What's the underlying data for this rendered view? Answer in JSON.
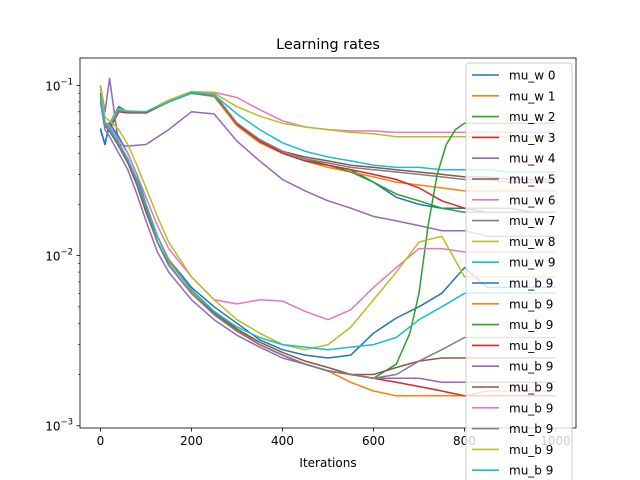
{
  "chart_data": {
    "type": "line",
    "title": "Learning rates",
    "xlabel": "Iterations",
    "ylabel": "",
    "xlim": [
      -45,
      1045
    ],
    "ylim": [
      0.00097,
      0.145
    ],
    "yscale": "log",
    "grid": false,
    "legend_position": "top-right",
    "x_ticks": [
      0,
      200,
      400,
      600,
      800,
      1000
    ],
    "x_tick_labels": [
      "0",
      "200",
      "400",
      "600",
      "800",
      "1000"
    ],
    "y_ticks": [
      0.001,
      0.01,
      0.1
    ],
    "y_tick_labels": [
      "10",
      "10",
      "10"
    ],
    "y_tick_exponents": [
      "−3",
      "−2",
      "−1"
    ],
    "series": [
      {
        "name": "mu_w 0",
        "color": "#1f77b4",
        "x": [
          0,
          10,
          20,
          40,
          60,
          100,
          150,
          200,
          250,
          300,
          350,
          400,
          450,
          500,
          550,
          600,
          650,
          700,
          750,
          800,
          850,
          900,
          950,
          1000
        ],
        "y": [
          0.056,
          0.045,
          0.06,
          0.075,
          0.07,
          0.07,
          0.08,
          0.091,
          0.088,
          0.06,
          0.048,
          0.04,
          0.036,
          0.034,
          0.032,
          0.027,
          0.022,
          0.02,
          0.019,
          0.019,
          0.019,
          0.019,
          0.018,
          0.018
        ]
      },
      {
        "name": "mu_w 1",
        "color": "#ff7f0e",
        "x": [
          0,
          10,
          20,
          40,
          60,
          100,
          150,
          200,
          250,
          300,
          350,
          400,
          450,
          500,
          550,
          600,
          650,
          700,
          750,
          800,
          850,
          900,
          950,
          1000
        ],
        "y": [
          0.1,
          0.06,
          0.058,
          0.072,
          0.07,
          0.069,
          0.08,
          0.09,
          0.086,
          0.058,
          0.046,
          0.04,
          0.036,
          0.033,
          0.031,
          0.029,
          0.027,
          0.026,
          0.025,
          0.024,
          0.024,
          0.024,
          0.024,
          0.024
        ]
      },
      {
        "name": "mu_w 2",
        "color": "#2ca02c",
        "x": [
          0,
          10,
          20,
          40,
          60,
          100,
          150,
          200,
          250,
          300,
          350,
          400,
          450,
          500,
          550,
          600,
          650,
          700,
          750,
          800,
          850,
          900,
          950,
          1000
        ],
        "y": [
          0.1,
          0.06,
          0.06,
          0.073,
          0.07,
          0.069,
          0.08,
          0.09,
          0.087,
          0.06,
          0.047,
          0.041,
          0.037,
          0.034,
          0.031,
          0.027,
          0.023,
          0.021,
          0.019,
          0.018,
          0.018,
          0.018,
          0.018,
          0.018
        ]
      },
      {
        "name": "mu_w 3",
        "color": "#d62728",
        "x": [
          0,
          10,
          20,
          40,
          60,
          100,
          150,
          200,
          250,
          300,
          350,
          400,
          450,
          500,
          550,
          600,
          650,
          700,
          750,
          800,
          850,
          900,
          950,
          1000
        ],
        "y": [
          0.1,
          0.058,
          0.055,
          0.07,
          0.069,
          0.069,
          0.08,
          0.091,
          0.088,
          0.059,
          0.047,
          0.04,
          0.036,
          0.034,
          0.032,
          0.03,
          0.028,
          0.025,
          0.021,
          0.019,
          0.018,
          0.018,
          0.018,
          0.018
        ]
      },
      {
        "name": "mu_w 4",
        "color": "#9467bd",
        "x": [
          0,
          10,
          20,
          40,
          60,
          100,
          150,
          200,
          250,
          300,
          350,
          400,
          450,
          500,
          550,
          600,
          650,
          700,
          750,
          800,
          850,
          900,
          950,
          1000
        ],
        "y": [
          0.1,
          0.07,
          0.11,
          0.045,
          0.044,
          0.045,
          0.055,
          0.07,
          0.068,
          0.047,
          0.036,
          0.028,
          0.024,
          0.021,
          0.019,
          0.017,
          0.016,
          0.015,
          0.014,
          0.014,
          0.013,
          0.013,
          0.013,
          0.013
        ]
      },
      {
        "name": "mu_w 5",
        "color": "#8c564b",
        "x": [
          0,
          10,
          20,
          40,
          60,
          100,
          150,
          200,
          250,
          300,
          350,
          400,
          450,
          500,
          550,
          600,
          650,
          700,
          750,
          800,
          850,
          900,
          950,
          1000
        ],
        "y": [
          0.1,
          0.057,
          0.06,
          0.073,
          0.07,
          0.07,
          0.081,
          0.091,
          0.089,
          0.06,
          0.048,
          0.041,
          0.038,
          0.036,
          0.034,
          0.033,
          0.032,
          0.031,
          0.03,
          0.029,
          0.029,
          0.028,
          0.028,
          0.028
        ]
      },
      {
        "name": "mu_w 6",
        "color": "#e377c2",
        "x": [
          0,
          10,
          20,
          40,
          60,
          100,
          150,
          200,
          250,
          300,
          350,
          400,
          450,
          500,
          550,
          600,
          650,
          700,
          750,
          800,
          850,
          900,
          950,
          1000
        ],
        "y": [
          0.1,
          0.06,
          0.06,
          0.072,
          0.07,
          0.07,
          0.081,
          0.092,
          0.091,
          0.085,
          0.072,
          0.062,
          0.057,
          0.055,
          0.054,
          0.054,
          0.053,
          0.053,
          0.053,
          0.053,
          0.053,
          0.053,
          0.053,
          0.053
        ]
      },
      {
        "name": "mu_w 7",
        "color": "#7f7f7f",
        "x": [
          0,
          10,
          20,
          40,
          60,
          100,
          150,
          200,
          250,
          300,
          350,
          400,
          450,
          500,
          550,
          600,
          650,
          700,
          750,
          800,
          850,
          900,
          950,
          1000
        ],
        "y": [
          0.1,
          0.057,
          0.058,
          0.072,
          0.07,
          0.07,
          0.08,
          0.091,
          0.087,
          0.06,
          0.048,
          0.041,
          0.037,
          0.035,
          0.033,
          0.032,
          0.031,
          0.03,
          0.029,
          0.028,
          0.028,
          0.027,
          0.027,
          0.027
        ]
      },
      {
        "name": "mu_w 8",
        "color": "#bcbd22",
        "x": [
          0,
          10,
          20,
          40,
          60,
          100,
          150,
          200,
          250,
          300,
          350,
          400,
          450,
          500,
          550,
          600,
          650,
          700,
          750,
          800,
          850,
          900,
          950,
          1000
        ],
        "y": [
          0.1,
          0.06,
          0.06,
          0.073,
          0.071,
          0.07,
          0.082,
          0.092,
          0.09,
          0.075,
          0.066,
          0.06,
          0.057,
          0.055,
          0.053,
          0.052,
          0.05,
          0.05,
          0.05,
          0.05,
          0.05,
          0.05,
          0.05,
          0.05
        ]
      },
      {
        "name": "mu_w 9",
        "color": "#17becf",
        "x": [
          0,
          10,
          20,
          40,
          60,
          100,
          150,
          200,
          250,
          300,
          350,
          400,
          450,
          500,
          550,
          600,
          650,
          700,
          750,
          800,
          850,
          900,
          950,
          1000
        ],
        "y": [
          0.1,
          0.058,
          0.058,
          0.072,
          0.07,
          0.07,
          0.08,
          0.091,
          0.088,
          0.068,
          0.055,
          0.046,
          0.041,
          0.038,
          0.036,
          0.034,
          0.033,
          0.033,
          0.032,
          0.032,
          0.032,
          0.031,
          0.031,
          0.031
        ]
      },
      {
        "name": "mu_b 9",
        "color": "#1f77b4",
        "x": [
          0,
          10,
          20,
          40,
          60,
          80,
          100,
          125,
          150,
          200,
          250,
          300,
          350,
          400,
          450,
          500,
          550,
          600,
          650,
          700,
          750,
          800,
          850,
          900,
          950,
          1000
        ],
        "y": [
          0.055,
          0.045,
          0.06,
          0.05,
          0.04,
          0.03,
          0.02,
          0.013,
          0.0095,
          0.0065,
          0.005,
          0.004,
          0.0032,
          0.0028,
          0.0026,
          0.0025,
          0.0026,
          0.0035,
          0.0043,
          0.005,
          0.006,
          0.0085,
          0.0065,
          0.0065,
          0.0065,
          0.0065
        ]
      },
      {
        "name": "mu_b 9",
        "color": "#ff7f0e",
        "x": [
          0,
          10,
          20,
          40,
          60,
          80,
          100,
          125,
          150,
          200,
          250,
          300,
          350,
          400,
          450,
          500,
          550,
          600,
          650,
          700,
          750,
          800,
          850,
          900,
          950,
          1000
        ],
        "y": [
          0.09,
          0.06,
          0.055,
          0.045,
          0.037,
          0.028,
          0.02,
          0.013,
          0.0095,
          0.0062,
          0.0047,
          0.0037,
          0.003,
          0.0026,
          0.0023,
          0.0021,
          0.0018,
          0.0016,
          0.0015,
          0.0015,
          0.0015,
          0.0015,
          0.0016,
          0.0016,
          0.0016,
          0.0016
        ]
      },
      {
        "name": "mu_b 9",
        "color": "#2ca02c",
        "x": [
          0,
          10,
          20,
          40,
          60,
          80,
          100,
          125,
          150,
          200,
          250,
          300,
          350,
          400,
          450,
          500,
          550,
          600,
          650,
          680,
          700,
          720,
          740,
          760,
          780,
          800,
          850,
          900,
          950,
          1000
        ],
        "y": [
          0.09,
          0.058,
          0.055,
          0.045,
          0.036,
          0.027,
          0.019,
          0.012,
          0.0088,
          0.006,
          0.0045,
          0.0036,
          0.003,
          0.0026,
          0.0023,
          0.0021,
          0.002,
          0.0019,
          0.0023,
          0.0035,
          0.006,
          0.015,
          0.03,
          0.045,
          0.055,
          0.06,
          0.06,
          0.06,
          0.06,
          0.06
        ]
      },
      {
        "name": "mu_b 9",
        "color": "#d62728",
        "x": [
          0,
          10,
          20,
          40,
          60,
          80,
          100,
          125,
          150,
          200,
          250,
          300,
          350,
          400,
          450,
          500,
          550,
          600,
          650,
          700,
          750,
          800,
          850,
          900,
          950,
          1000
        ],
        "y": [
          0.085,
          0.058,
          0.054,
          0.044,
          0.036,
          0.027,
          0.019,
          0.012,
          0.0088,
          0.006,
          0.0045,
          0.0036,
          0.003,
          0.0026,
          0.0023,
          0.0021,
          0.002,
          0.0019,
          0.0018,
          0.0017,
          0.0016,
          0.0015,
          0.0015,
          0.0015,
          0.0015,
          0.0015
        ]
      },
      {
        "name": "mu_b 9",
        "color": "#9467bd",
        "x": [
          0,
          10,
          20,
          40,
          60,
          80,
          100,
          125,
          150,
          200,
          250,
          300,
          350,
          400,
          450,
          500,
          550,
          600,
          650,
          700,
          750,
          800,
          850,
          900,
          950,
          1000
        ],
        "y": [
          0.08,
          0.055,
          0.05,
          0.04,
          0.032,
          0.023,
          0.016,
          0.0105,
          0.008,
          0.0055,
          0.0042,
          0.0034,
          0.0029,
          0.0025,
          0.0023,
          0.0021,
          0.002,
          0.0019,
          0.0019,
          0.0019,
          0.0018,
          0.0018,
          0.0018,
          0.0018,
          0.0018,
          0.0018
        ]
      },
      {
        "name": "mu_b 9",
        "color": "#8c564b",
        "x": [
          0,
          10,
          20,
          40,
          60,
          80,
          100,
          125,
          150,
          200,
          250,
          300,
          350,
          400,
          450,
          500,
          550,
          600,
          650,
          700,
          750,
          800,
          850,
          900,
          950,
          1000
        ],
        "y": [
          0.085,
          0.058,
          0.054,
          0.044,
          0.035,
          0.026,
          0.018,
          0.012,
          0.0088,
          0.006,
          0.0046,
          0.0037,
          0.0031,
          0.0027,
          0.0024,
          0.0022,
          0.002,
          0.002,
          0.0022,
          0.0024,
          0.0025,
          0.0025,
          0.0025,
          0.0025,
          0.0025,
          0.0025
        ]
      },
      {
        "name": "mu_b 9",
        "color": "#e377c2",
        "x": [
          0,
          10,
          20,
          40,
          60,
          80,
          100,
          125,
          150,
          200,
          250,
          300,
          350,
          400,
          450,
          500,
          550,
          600,
          650,
          700,
          750,
          800,
          850,
          900,
          950,
          1000
        ],
        "y": [
          0.085,
          0.06,
          0.058,
          0.048,
          0.04,
          0.03,
          0.022,
          0.015,
          0.011,
          0.0075,
          0.0055,
          0.0052,
          0.0055,
          0.0054,
          0.0047,
          0.0042,
          0.0048,
          0.0065,
          0.0085,
          0.011,
          0.011,
          0.0105,
          0.0105,
          0.0105,
          0.0105,
          0.0105
        ]
      },
      {
        "name": "mu_b 9",
        "color": "#7f7f7f",
        "x": [
          0,
          10,
          20,
          40,
          60,
          80,
          100,
          125,
          150,
          200,
          250,
          300,
          350,
          400,
          450,
          500,
          550,
          600,
          650,
          700,
          750,
          800,
          850,
          900,
          950,
          1000
        ],
        "y": [
          0.085,
          0.058,
          0.055,
          0.045,
          0.036,
          0.027,
          0.019,
          0.012,
          0.0088,
          0.006,
          0.0045,
          0.0036,
          0.003,
          0.0026,
          0.0023,
          0.0021,
          0.002,
          0.0019,
          0.002,
          0.0024,
          0.0028,
          0.0033,
          0.0033,
          0.0033,
          0.0033,
          0.0033
        ]
      },
      {
        "name": "mu_b 9",
        "color": "#bcbd22",
        "x": [
          0,
          10,
          20,
          40,
          60,
          80,
          100,
          125,
          150,
          200,
          250,
          300,
          350,
          400,
          450,
          500,
          550,
          600,
          650,
          700,
          750,
          800,
          850,
          900,
          950,
          1000
        ],
        "y": [
          0.1,
          0.065,
          0.062,
          0.055,
          0.045,
          0.034,
          0.025,
          0.017,
          0.012,
          0.0075,
          0.0055,
          0.0042,
          0.0035,
          0.003,
          0.0028,
          0.003,
          0.0038,
          0.0055,
          0.008,
          0.012,
          0.013,
          0.0075,
          0.0075,
          0.0075,
          0.0075,
          0.0075
        ]
      },
      {
        "name": "mu_b 9",
        "color": "#17becf",
        "x": [
          0,
          10,
          20,
          40,
          60,
          80,
          100,
          125,
          150,
          200,
          250,
          300,
          350,
          400,
          450,
          500,
          550,
          600,
          650,
          700,
          750,
          800,
          850,
          900,
          950,
          1000
        ],
        "y": [
          0.085,
          0.06,
          0.056,
          0.046,
          0.037,
          0.028,
          0.02,
          0.013,
          0.0092,
          0.0063,
          0.0047,
          0.0038,
          0.0033,
          0.003,
          0.0029,
          0.0028,
          0.0029,
          0.003,
          0.0033,
          0.0042,
          0.005,
          0.006,
          0.006,
          0.006,
          0.006,
          0.006
        ]
      }
    ]
  }
}
